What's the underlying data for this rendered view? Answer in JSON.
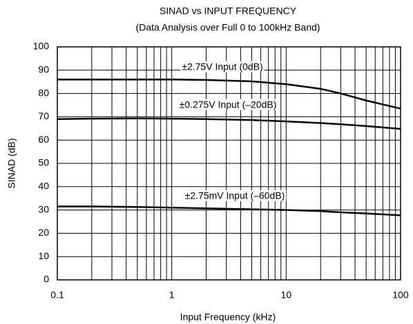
{
  "chart_data": {
    "type": "line",
    "title": "SINAD vs INPUT FREQUENCY",
    "subtitle": "(Data Analysis over Full 0 to 100kHz Band)",
    "x_label": "Input Frequency (kHz)",
    "y_label": "SINAD (dB)",
    "x_scale": "log",
    "xlim": [
      0.1,
      100
    ],
    "xticks": [
      0.1,
      1,
      10,
      100
    ],
    "xminor_grid": [
      0.2,
      0.3,
      0.4,
      0.5,
      0.6,
      0.7,
      0.8,
      0.9,
      2,
      3,
      4,
      5,
      6,
      7,
      8,
      9,
      20,
      30,
      40,
      50,
      60,
      70,
      80,
      90
    ],
    "ylim": [
      0,
      100
    ],
    "yticks": [
      0,
      10,
      20,
      30,
      40,
      50,
      60,
      70,
      80,
      90,
      100
    ],
    "grid": true,
    "x": [
      0.1,
      0.2,
      0.5,
      1,
      2,
      5,
      10,
      20,
      30,
      50,
      100
    ],
    "series": [
      {
        "name": "±2.75V Input (0dB)",
        "color": "#000000",
        "values": [
          86,
          86,
          86,
          86,
          85.8,
          85.2,
          84,
          82,
          80,
          77,
          73.5
        ]
      },
      {
        "name": "±0.275V Input (–20dB)",
        "color": "#000000",
        "values": [
          69,
          69.2,
          69.3,
          69.2,
          69,
          68.6,
          68,
          67.3,
          66.8,
          66,
          64.8
        ]
      },
      {
        "name": "±2.75mV Input (–60dB)",
        "color": "#000000",
        "values": [
          31.5,
          31.5,
          31.3,
          31,
          30.7,
          30.3,
          30,
          29.5,
          29,
          28.5,
          27.7
        ]
      }
    ]
  }
}
